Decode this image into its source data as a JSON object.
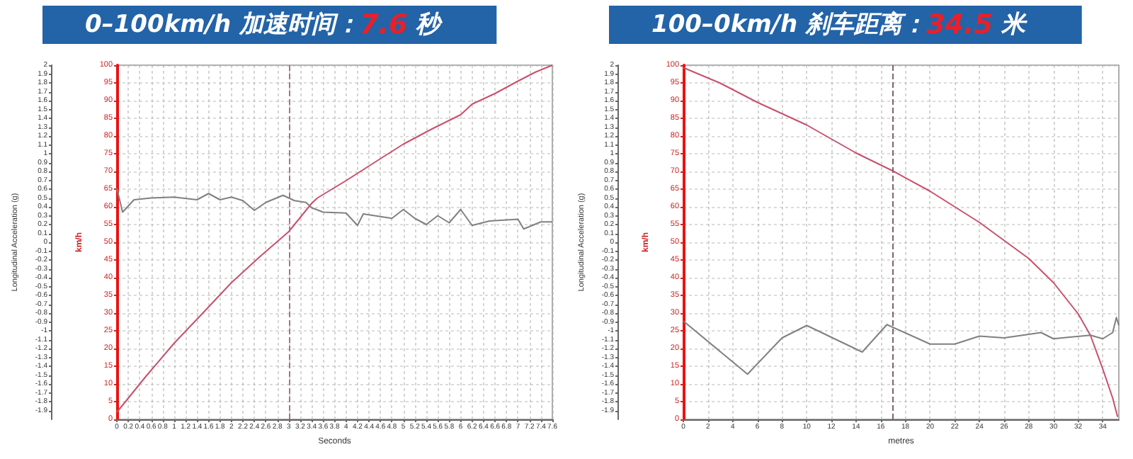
{
  "chart_data": [
    {
      "type": "line",
      "title": "0–100km/h 加速时间：7.6 秒",
      "xlabel": "Seconds",
      "ylabel": "km/h",
      "y2label": "Longitudinal Acceleration (g)",
      "xlim": [
        0,
        7.6
      ],
      "xticks": [
        0,
        0.2,
        0.4,
        0.6,
        0.8,
        1,
        1.2,
        1.4,
        1.6,
        1.8,
        2,
        2.2,
        2.4,
        2.6,
        2.8,
        3,
        3.2,
        3.4,
        3.6,
        3.8,
        4,
        4.2,
        4.4,
        4.6,
        4.8,
        5,
        5.2,
        5.4,
        5.6,
        5.8,
        6,
        6.2,
        6.4,
        6.6,
        6.8,
        7,
        7.2,
        7.4,
        7.6
      ],
      "ylim": [
        0,
        100
      ],
      "yticks": [
        0,
        5,
        10,
        15,
        20,
        25,
        30,
        35,
        40,
        45,
        50,
        55,
        60,
        65,
        70,
        75,
        80,
        85,
        90,
        95,
        100
      ],
      "y2lim": [
        -2,
        2
      ],
      "y2ticks": [
        -1.9,
        -1.8,
        -1.7,
        -1.6,
        -1.5,
        -1.4,
        -1.3,
        -1.2,
        -1.1,
        -1,
        -0.9,
        -0.8,
        -0.7,
        -0.6,
        -0.5,
        -0.4,
        -0.3,
        -0.2,
        -0.1,
        0,
        0.1,
        0.2,
        0.3,
        0.4,
        0.5,
        0.6,
        0.7,
        0.8,
        0.9,
        1,
        1.1,
        1.2,
        1.3,
        1.4,
        1.5,
        1.6,
        1.7,
        1.8,
        1.9,
        2
      ],
      "grid": true,
      "ref_lines": [
        {
          "axis": "x",
          "value": 3,
          "color": "#b07088",
          "line_style": "dashed"
        }
      ],
      "series": [
        {
          "color": "#c8506a",
          "x": [
            0,
            0.5,
            1,
            1.5,
            2,
            2.5,
            3,
            3.4,
            3.5,
            4,
            4.3,
            4.6,
            5,
            5.5,
            6,
            6.2,
            6.6,
            7,
            7.3,
            7.6
          ],
          "values": [
            2,
            12,
            21.5,
            30,
            38.6,
            46,
            53,
            61,
            62.5,
            67.4,
            70.5,
            73.6,
            77.7,
            82,
            86,
            89,
            92,
            95.5,
            98,
            100
          ]
        },
        {
          "color": "#808080",
          "axis": "y2",
          "x": [
            0,
            0.1,
            0.3,
            0.6,
            1,
            1.4,
            1.6,
            1.8,
            2,
            2.2,
            2.4,
            2.6,
            2.9,
            3.1,
            3.3,
            3.4,
            3.6,
            4,
            4.2,
            4.3,
            4.5,
            4.8,
            5,
            5.2,
            5.4,
            5.6,
            5.8,
            6,
            6.2,
            6.5,
            7,
            7.1,
            7.4,
            7.6
          ],
          "values": [
            0.61,
            0.34,
            0.48,
            0.5,
            0.51,
            0.48,
            0.55,
            0.48,
            0.51,
            0.47,
            0.36,
            0.45,
            0.53,
            0.47,
            0.45,
            0.39,
            0.34,
            0.33,
            0.19,
            0.32,
            0.3,
            0.27,
            0.37,
            0.27,
            0.2,
            0.3,
            0.22,
            0.37,
            0.19,
            0.24,
            0.26,
            0.15,
            0.23,
            0.23
          ]
        }
      ]
    },
    {
      "type": "line",
      "title": "100–0km/h 刹车距离：34.5 米",
      "xlabel": "metres",
      "ylabel": "km/h",
      "y2label": "Longitudinal Acceleration (g)",
      "xlim": [
        0,
        35.3
      ],
      "xticks": [
        0,
        2,
        4,
        6,
        8,
        10,
        12,
        14,
        16,
        18,
        20,
        22,
        24,
        26,
        28,
        30,
        32,
        34
      ],
      "ylim": [
        0,
        100
      ],
      "yticks": [
        0,
        5,
        10,
        15,
        20,
        25,
        30,
        35,
        40,
        45,
        50,
        55,
        60,
        65,
        70,
        75,
        80,
        85,
        90,
        95,
        100
      ],
      "y2lim": [
        -2,
        2
      ],
      "y2ticks": [
        -1.9,
        -1.8,
        -1.7,
        -1.6,
        -1.5,
        -1.4,
        -1.3,
        -1.2,
        -1.1,
        -1,
        -0.9,
        -0.8,
        -0.7,
        -0.6,
        -0.5,
        -0.4,
        -0.3,
        -0.2,
        -0.1,
        0,
        0.1,
        0.2,
        0.3,
        0.4,
        0.5,
        0.6,
        0.7,
        0.8,
        0.9,
        1,
        1.1,
        1.2,
        1.3,
        1.4,
        1.5,
        1.6,
        1.7,
        1.8,
        1.9,
        2
      ],
      "grid": true,
      "ref_lines": [
        {
          "axis": "x",
          "value": 17,
          "color": "#806070",
          "line_style": "dashed"
        }
      ],
      "series": [
        {
          "color": "#c8506a",
          "x": [
            0,
            3,
            6,
            10,
            14,
            17,
            20,
            24,
            28,
            30,
            32,
            33,
            34,
            34.8,
            35.2
          ],
          "values": [
            99.3,
            94.9,
            89.5,
            83.1,
            75.2,
            70.1,
            64.4,
            55.6,
            45.4,
            38.6,
            29.8,
            23.7,
            14.2,
            6,
            0.7
          ]
        },
        {
          "color": "#808080",
          "axis": "y2",
          "x": [
            0,
            5.2,
            8,
            10,
            14.5,
            16.5,
            20,
            22,
            24,
            26,
            29,
            30,
            33,
            34,
            34.8,
            35.1,
            35.3
          ],
          "values": [
            -0.89,
            -1.49,
            -1.08,
            -0.94,
            -1.24,
            -0.93,
            -1.15,
            -1.15,
            -1.06,
            -1.08,
            -1.02,
            -1.09,
            -1.05,
            -1.09,
            -1.02,
            -0.85,
            -0.94
          ]
        }
      ]
    }
  ]
}
